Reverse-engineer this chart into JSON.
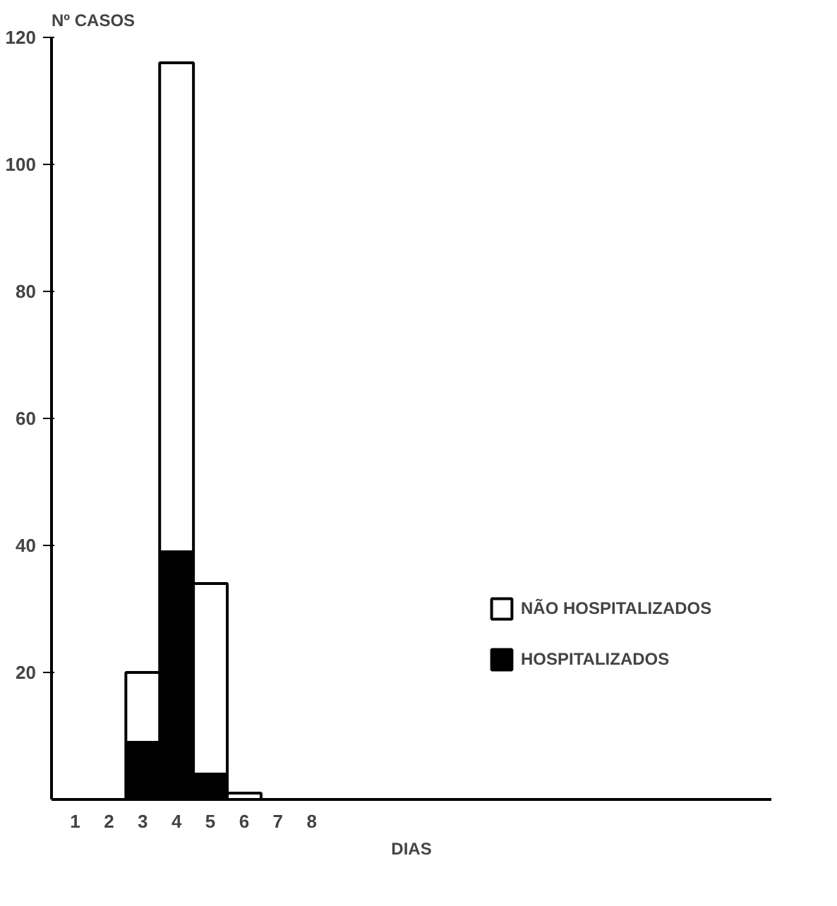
{
  "chart_data": {
    "type": "bar",
    "ylabel": "Nº CASOS",
    "xlabel": "DIAS",
    "categories": [
      "1",
      "2",
      "3",
      "4",
      "5",
      "6",
      "7",
      "8"
    ],
    "stacked": true,
    "series": [
      {
        "name": "HOSPITALIZADOS",
        "color": "#000000",
        "values": [
          0,
          0,
          9,
          39,
          4,
          0,
          0,
          0
        ]
      },
      {
        "name": "NÃO HOSPITALIZADOS",
        "color": "#ffffff",
        "values": [
          0,
          0,
          11,
          77,
          30,
          1,
          0,
          0
        ]
      }
    ],
    "ylim": [
      0,
      120
    ],
    "yticks": [
      20,
      40,
      60,
      80,
      100,
      120
    ],
    "grid": false,
    "legend": "right"
  }
}
